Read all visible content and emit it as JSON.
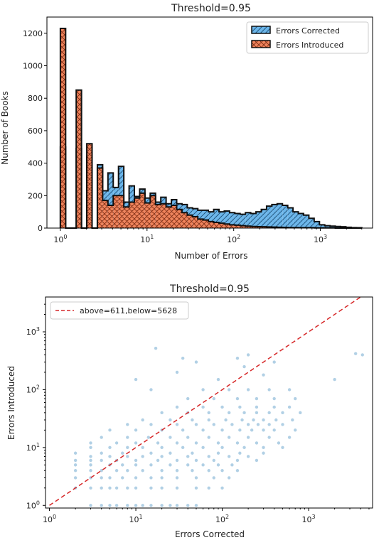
{
  "chart_data": [
    {
      "type": "histogram",
      "title": "Threshold=0.95",
      "xlabel": "Number of Errors",
      "ylabel": "Number of Books",
      "xscale": "log",
      "xlim": [
        0.7,
        4000
      ],
      "ylim": [
        0,
        1300
      ],
      "x_ticks": [
        {
          "value": 1,
          "base": "10",
          "exp": "0"
        },
        {
          "value": 10,
          "base": "10",
          "exp": "1"
        },
        {
          "value": 100,
          "base": "10",
          "exp": "2"
        },
        {
          "value": 1000,
          "base": "10",
          "exp": "3"
        }
      ],
      "y_ticks": [
        0,
        200,
        400,
        600,
        800,
        1000,
        1200
      ],
      "legend": "top-right",
      "series": [
        {
          "name": "Errors Corrected",
          "color": "#6cb6ea",
          "edge": "#111111",
          "hatch": "diagonal",
          "values": [
            500,
            0,
            0,
            490,
            0,
            440,
            0,
            390,
            230,
            340,
            250,
            380,
            160,
            260,
            195,
            240,
            185,
            215,
            160,
            190,
            150,
            175,
            150,
            145,
            125,
            120,
            110,
            110,
            100,
            115,
            100,
            105,
            95,
            90,
            85,
            95,
            90,
            100,
            115,
            135,
            145,
            150,
            140,
            125,
            100,
            90,
            80,
            60,
            40,
            20,
            15,
            12,
            10,
            8,
            5,
            3,
            2
          ]
        },
        {
          "name": "Errors Introduced",
          "color": "#f0845c",
          "edge": "#111111",
          "hatch": "cross",
          "values": [
            1230,
            0,
            0,
            850,
            0,
            520,
            0,
            370,
            170,
            140,
            200,
            200,
            130,
            160,
            185,
            215,
            155,
            200,
            145,
            150,
            130,
            140,
            115,
            95,
            80,
            70,
            55,
            50,
            40,
            35,
            30,
            25,
            20,
            18,
            15,
            12,
            10,
            9,
            8,
            7,
            6,
            5,
            4,
            3,
            3,
            2,
            2,
            2,
            1,
            1,
            1,
            1,
            0,
            0,
            0,
            0,
            0
          ]
        }
      ],
      "bin_range": [
        1.0,
        3000
      ]
    },
    {
      "type": "scatter",
      "title": "Threshold=0.95",
      "xlabel": "Errors Corrected",
      "ylabel": "Errors Introduced",
      "xscale": "log",
      "yscale": "log",
      "xlim": [
        0.9,
        5500
      ],
      "ylim": [
        0.9,
        4000
      ],
      "x_ticks": [
        {
          "value": 1,
          "base": "10",
          "exp": "0"
        },
        {
          "value": 10,
          "base": "10",
          "exp": "1"
        },
        {
          "value": 100,
          "base": "10",
          "exp": "2"
        },
        {
          "value": 1000,
          "base": "10",
          "exp": "3"
        }
      ],
      "y_ticks": [
        {
          "value": 1,
          "base": "10",
          "exp": "0"
        },
        {
          "value": 10,
          "base": "10",
          "exp": "1"
        },
        {
          "value": 100,
          "base": "10",
          "exp": "2"
        },
        {
          "value": 1000,
          "base": "10",
          "exp": "3"
        }
      ],
      "point_color": "#1f77b4",
      "diagonal": {
        "label": "above=611,below=5628",
        "color": "#d62728",
        "style": "dashed",
        "from": [
          1,
          1
        ],
        "to": [
          4000,
          4000
        ]
      },
      "legend": "top-left",
      "points": [
        [
          3,
          1
        ],
        [
          4,
          1
        ],
        [
          5,
          1
        ],
        [
          6,
          1
        ],
        [
          8,
          1
        ],
        [
          10,
          1
        ],
        [
          12,
          1
        ],
        [
          15,
          1
        ],
        [
          20,
          1
        ],
        [
          25,
          1
        ],
        [
          30,
          1
        ],
        [
          40,
          1
        ],
        [
          50,
          1
        ],
        [
          2,
          2
        ],
        [
          3,
          2
        ],
        [
          4,
          2
        ],
        [
          5,
          2
        ],
        [
          6,
          2
        ],
        [
          8,
          2
        ],
        [
          10,
          2
        ],
        [
          15,
          2
        ],
        [
          20,
          2
        ],
        [
          30,
          2
        ],
        [
          50,
          2
        ],
        [
          70,
          2
        ],
        [
          100,
          2
        ],
        [
          2,
          3
        ],
        [
          3,
          3
        ],
        [
          4,
          3
        ],
        [
          5,
          3
        ],
        [
          7,
          3
        ],
        [
          10,
          3
        ],
        [
          15,
          3
        ],
        [
          20,
          3
        ],
        [
          30,
          3
        ],
        [
          50,
          3
        ],
        [
          80,
          3
        ],
        [
          120,
          3
        ],
        [
          2,
          4
        ],
        [
          3,
          4
        ],
        [
          4,
          4
        ],
        [
          6,
          4
        ],
        [
          8,
          4
        ],
        [
          12,
          4
        ],
        [
          20,
          4
        ],
        [
          30,
          4
        ],
        [
          45,
          4
        ],
        [
          70,
          4
        ],
        [
          100,
          4
        ],
        [
          150,
          4
        ],
        [
          2,
          5
        ],
        [
          3,
          5
        ],
        [
          5,
          5
        ],
        [
          7,
          5
        ],
        [
          10,
          5
        ],
        [
          15,
          5
        ],
        [
          25,
          5
        ],
        [
          40,
          5
        ],
        [
          60,
          5
        ],
        [
          90,
          5
        ],
        [
          130,
          5
        ],
        [
          2,
          6
        ],
        [
          3,
          6
        ],
        [
          4,
          6
        ],
        [
          6,
          6
        ],
        [
          10,
          6
        ],
        [
          18,
          6
        ],
        [
          30,
          6
        ],
        [
          50,
          6
        ],
        [
          80,
          6
        ],
        [
          150,
          6
        ],
        [
          250,
          6
        ],
        [
          3,
          7
        ],
        [
          5,
          7
        ],
        [
          8,
          7
        ],
        [
          12,
          7
        ],
        [
          20,
          7
        ],
        [
          40,
          7
        ],
        [
          70,
          7
        ],
        [
          120,
          7
        ],
        [
          200,
          7
        ],
        [
          2,
          8
        ],
        [
          4,
          8
        ],
        [
          7,
          8
        ],
        [
          15,
          8
        ],
        [
          25,
          8
        ],
        [
          45,
          8
        ],
        [
          90,
          8
        ],
        [
          160,
          8
        ],
        [
          300,
          8
        ],
        [
          3,
          10
        ],
        [
          5,
          10
        ],
        [
          8,
          10
        ],
        [
          12,
          10
        ],
        [
          20,
          10
        ],
        [
          35,
          10
        ],
        [
          60,
          10
        ],
        [
          100,
          10
        ],
        [
          180,
          10
        ],
        [
          300,
          10
        ],
        [
          500,
          10
        ],
        [
          3,
          12
        ],
        [
          6,
          12
        ],
        [
          10,
          12
        ],
        [
          18,
          12
        ],
        [
          30,
          12
        ],
        [
          50,
          12
        ],
        [
          90,
          12
        ],
        [
          150,
          12
        ],
        [
          250,
          12
        ],
        [
          450,
          12
        ],
        [
          4,
          15
        ],
        [
          8,
          15
        ],
        [
          14,
          15
        ],
        [
          25,
          15
        ],
        [
          40,
          15
        ],
        [
          70,
          15
        ],
        [
          120,
          15
        ],
        [
          200,
          15
        ],
        [
          350,
          15
        ],
        [
          600,
          15
        ],
        [
          5,
          20
        ],
        [
          10,
          20
        ],
        [
          20,
          20
        ],
        [
          35,
          20
        ],
        [
          60,
          20
        ],
        [
          100,
          20
        ],
        [
          160,
          20
        ],
        [
          220,
          20
        ],
        [
          300,
          20
        ],
        [
          400,
          20
        ],
        [
          700,
          20
        ],
        [
          8,
          25
        ],
        [
          15,
          25
        ],
        [
          30,
          25
        ],
        [
          50,
          25
        ],
        [
          80,
          25
        ],
        [
          130,
          25
        ],
        [
          200,
          25
        ],
        [
          260,
          25
        ],
        [
          350,
          25
        ],
        [
          500,
          25
        ],
        [
          12,
          30
        ],
        [
          25,
          30
        ],
        [
          45,
          30
        ],
        [
          70,
          30
        ],
        [
          110,
          30
        ],
        [
          170,
          30
        ],
        [
          230,
          30
        ],
        [
          300,
          30
        ],
        [
          420,
          30
        ],
        [
          650,
          30
        ],
        [
          20,
          40
        ],
        [
          40,
          40
        ],
        [
          70,
          40
        ],
        [
          120,
          40
        ],
        [
          180,
          40
        ],
        [
          250,
          40
        ],
        [
          350,
          40
        ],
        [
          500,
          40
        ],
        [
          800,
          40
        ],
        [
          30,
          50
        ],
        [
          60,
          50
        ],
        [
          100,
          50
        ],
        [
          160,
          50
        ],
        [
          250,
          50
        ],
        [
          400,
          50
        ],
        [
          600,
          50
        ],
        [
          40,
          70
        ],
        [
          80,
          70
        ],
        [
          150,
          70
        ],
        [
          250,
          70
        ],
        [
          400,
          70
        ],
        [
          700,
          70
        ],
        [
          60,
          100
        ],
        [
          120,
          100
        ],
        [
          200,
          100
        ],
        [
          350,
          100
        ],
        [
          600,
          100
        ],
        [
          10,
          150
        ],
        [
          15,
          100
        ],
        [
          30,
          200
        ],
        [
          50,
          300
        ],
        [
          90,
          150
        ],
        [
          180,
          250
        ],
        [
          300,
          180
        ],
        [
          17,
          520
        ],
        [
          200,
          400
        ],
        [
          2000,
          150
        ],
        [
          3500,
          420
        ],
        [
          4200,
          400
        ],
        [
          150,
          350
        ],
        [
          400,
          300
        ],
        [
          35,
          350
        ]
      ]
    }
  ]
}
